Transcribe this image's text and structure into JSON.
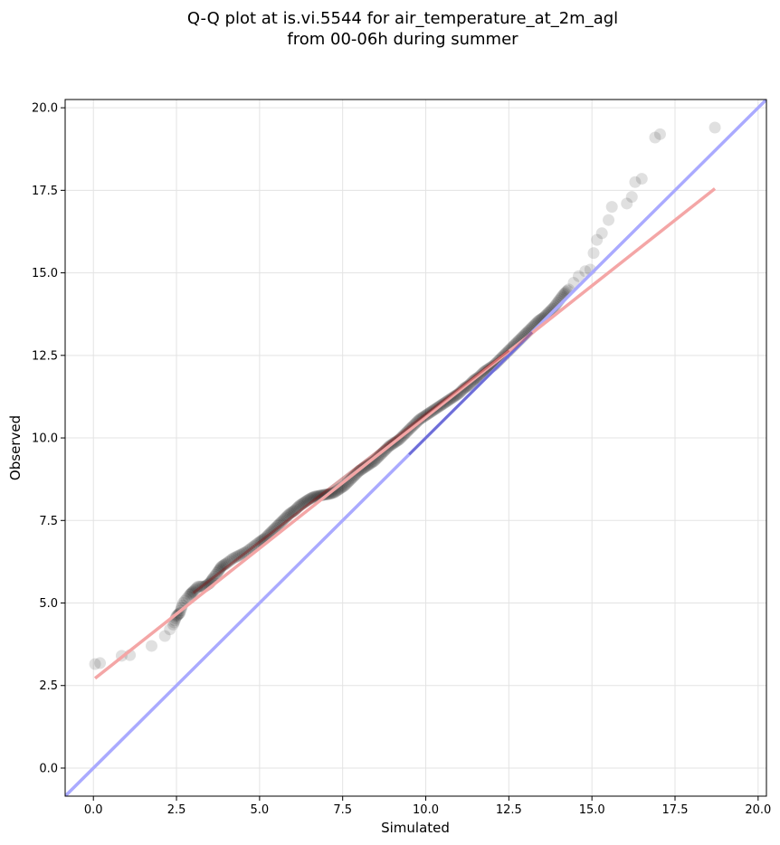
{
  "chart_data": {
    "type": "scatter",
    "title_line1": "Q-Q plot at is.vi.5544 for air_temperature_at_2m_agl",
    "title_line2": "from 00-06h during summer",
    "xlabel": "Simulated",
    "ylabel": "Observed",
    "xlim": [
      -0.85,
      20.25
    ],
    "ylim": [
      -0.85,
      20.25
    ],
    "xticks": [
      0.0,
      2.5,
      5.0,
      7.5,
      10.0,
      12.5,
      15.0,
      17.5,
      20.0
    ],
    "yticks": [
      0.0,
      2.5,
      5.0,
      7.5,
      10.0,
      12.5,
      15.0,
      17.5,
      20.0
    ],
    "xtick_labels": [
      "0.0",
      "2.5",
      "5.0",
      "7.5",
      "10.0",
      "12.5",
      "15.0",
      "17.5",
      "20.0"
    ],
    "ytick_labels": [
      "0.0",
      "2.5",
      "5.0",
      "7.5",
      "10.0",
      "12.5",
      "15.0",
      "17.5",
      "20.0"
    ],
    "grid": true,
    "colors": {
      "points": "#000000",
      "identity_line": "#aaaaff",
      "fit_line": "#f4a6a6",
      "low_density_overlay": "#8b0000",
      "high_density_overlay": "#00008b"
    },
    "points": [
      [
        0.05,
        3.15
      ],
      [
        0.2,
        3.18
      ],
      [
        0.85,
        3.4
      ],
      [
        1.1,
        3.42
      ],
      [
        1.75,
        3.7
      ],
      [
        2.15,
        4.0
      ],
      [
        2.3,
        4.2
      ],
      [
        2.4,
        4.35
      ],
      [
        2.5,
        4.6
      ],
      [
        2.6,
        4.7
      ],
      [
        2.7,
        5.0
      ],
      [
        2.9,
        5.25
      ],
      [
        3.0,
        5.35
      ],
      [
        3.15,
        5.5
      ],
      [
        3.35,
        5.5
      ],
      [
        3.5,
        5.6
      ],
      [
        3.6,
        5.75
      ],
      [
        3.75,
        5.95
      ],
      [
        3.85,
        6.1
      ],
      [
        4.0,
        6.2
      ],
      [
        4.2,
        6.35
      ],
      [
        4.4,
        6.45
      ],
      [
        4.6,
        6.55
      ],
      [
        4.8,
        6.7
      ],
      [
        5.0,
        6.85
      ],
      [
        5.15,
        6.95
      ],
      [
        5.3,
        7.1
      ],
      [
        5.45,
        7.25
      ],
      [
        5.6,
        7.4
      ],
      [
        5.75,
        7.55
      ],
      [
        5.9,
        7.7
      ],
      [
        6.05,
        7.8
      ],
      [
        6.2,
        7.95
      ],
      [
        6.35,
        8.05
      ],
      [
        6.5,
        8.15
      ],
      [
        6.65,
        8.22
      ],
      [
        6.8,
        8.25
      ],
      [
        6.95,
        8.28
      ],
      [
        7.1,
        8.3
      ],
      [
        7.25,
        8.35
      ],
      [
        7.4,
        8.45
      ],
      [
        7.55,
        8.55
      ],
      [
        7.7,
        8.7
      ],
      [
        7.85,
        8.85
      ],
      [
        8.0,
        9.0
      ],
      [
        8.15,
        9.1
      ],
      [
        8.3,
        9.2
      ],
      [
        8.45,
        9.3
      ],
      [
        8.6,
        9.45
      ],
      [
        8.75,
        9.6
      ],
      [
        8.9,
        9.75
      ],
      [
        9.05,
        9.85
      ],
      [
        9.2,
        9.95
      ],
      [
        9.35,
        10.1
      ],
      [
        9.5,
        10.25
      ],
      [
        9.65,
        10.4
      ],
      [
        9.8,
        10.55
      ],
      [
        9.95,
        10.65
      ],
      [
        10.1,
        10.75
      ],
      [
        10.25,
        10.85
      ],
      [
        10.4,
        10.95
      ],
      [
        10.55,
        11.05
      ],
      [
        10.7,
        11.15
      ],
      [
        10.85,
        11.25
      ],
      [
        11.0,
        11.35
      ],
      [
        11.15,
        11.5
      ],
      [
        11.3,
        11.6
      ],
      [
        11.45,
        11.75
      ],
      [
        11.6,
        11.85
      ],
      [
        11.75,
        12.0
      ],
      [
        11.9,
        12.1
      ],
      [
        12.05,
        12.2
      ],
      [
        12.2,
        12.35
      ],
      [
        12.35,
        12.5
      ],
      [
        12.5,
        12.65
      ],
      [
        12.65,
        12.8
      ],
      [
        12.8,
        12.95
      ],
      [
        12.95,
        13.1
      ],
      [
        13.1,
        13.25
      ],
      [
        13.25,
        13.4
      ],
      [
        13.4,
        13.55
      ],
      [
        13.55,
        13.65
      ],
      [
        13.7,
        13.8
      ],
      [
        13.85,
        13.95
      ],
      [
        14.0,
        14.15
      ],
      [
        14.15,
        14.35
      ],
      [
        14.3,
        14.5
      ],
      [
        14.45,
        14.7
      ],
      [
        14.6,
        14.9
      ],
      [
        14.8,
        15.05
      ],
      [
        14.95,
        15.1
      ],
      [
        15.05,
        15.6
      ],
      [
        15.15,
        16.0
      ],
      [
        15.3,
        16.2
      ],
      [
        15.5,
        16.6
      ],
      [
        15.6,
        17.0
      ],
      [
        16.05,
        17.1
      ],
      [
        16.2,
        17.3
      ],
      [
        16.3,
        17.75
      ],
      [
        16.5,
        17.85
      ],
      [
        16.9,
        19.1
      ],
      [
        17.05,
        19.2
      ],
      [
        18.7,
        19.4
      ]
    ],
    "identity_line": [
      [
        -0.85,
        -0.85
      ],
      [
        20.25,
        20.25
      ]
    ],
    "fit_line": [
      [
        0.05,
        2.72
      ],
      [
        18.7,
        17.55
      ]
    ]
  }
}
